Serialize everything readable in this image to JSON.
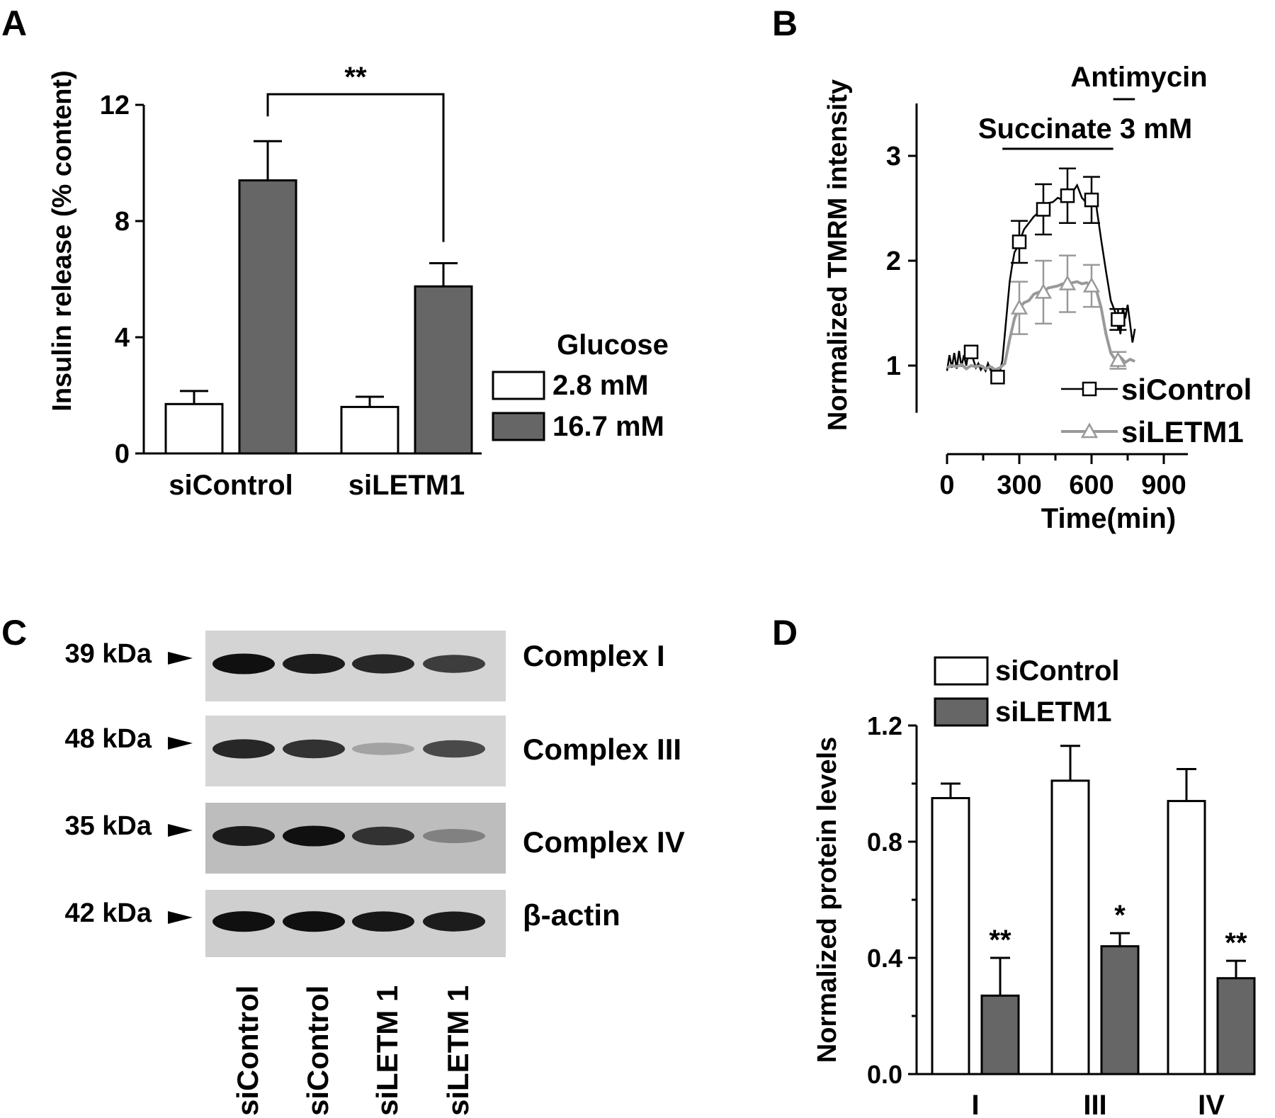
{
  "panels": {
    "A": {
      "letter": "A",
      "chart_data": {
        "type": "bar",
        "ylabel": "Insulin release (% content)",
        "ylim": [
          0,
          12
        ],
        "yticks": [
          "0",
          "4",
          "8",
          "12"
        ],
        "categories": [
          "siControl",
          "siLETM1"
        ],
        "legend_title": "Glucose",
        "legend_placement": "right",
        "series": [
          {
            "name": "2.8 mM",
            "color": "#ffffff",
            "values": [
              1.7,
              1.6
            ],
            "errors": [
              0.45,
              0.35
            ]
          },
          {
            "name": "16.7 mM",
            "color": "#666666",
            "values": [
              9.4,
              5.75
            ],
            "errors": [
              1.35,
              0.8
            ]
          }
        ],
        "significance": "**"
      }
    },
    "B": {
      "letter": "B",
      "chart_data": {
        "type": "line",
        "xlabel": "Time(min)",
        "ylabel": "Normalized TMRM intensity",
        "xlim": [
          0,
          1000
        ],
        "ylim": [
          0.55,
          3.5
        ],
        "xticks": [
          "0",
          "300",
          "600",
          "900"
        ],
        "yticks": [
          "1",
          "2",
          "3"
        ],
        "annotations": {
          "succinate": "Succinate 3 mM",
          "antimycin": "Antimycin"
        },
        "treatment_windows": {
          "succinate": [
            230,
            690
          ],
          "antimycin": [
            690,
            780
          ]
        },
        "series": [
          {
            "name": "siControl",
            "color": "#000000",
            "marker": "square",
            "x": [
              100,
              210,
              300,
              400,
              500,
              600,
              710
            ],
            "y": [
              1.13,
              0.89,
              2.18,
              2.49,
              2.62,
              2.58,
              1.44
            ],
            "errors": [
              0,
              0,
              0.2,
              0.24,
              0.26,
              0.22,
              0.1
            ],
            "trace_x": [
              0,
              10,
              20,
              30,
              40,
              50,
              60,
              70,
              80,
              90,
              100,
              110,
              120,
              130,
              140,
              150,
              160,
              170,
              180,
              190,
              200,
              210,
              220,
              230,
              240,
              250,
              260,
              270,
              280,
              290,
              300,
              320,
              340,
              360,
              380,
              400,
              420,
              440,
              460,
              480,
              500,
              520,
              540,
              560,
              580,
              600,
              620,
              640,
              660,
              680,
              700,
              710,
              720,
              730,
              740,
              750,
              760,
              770,
              780
            ],
            "trace_y": [
              0.95,
              1.1,
              0.98,
              1.12,
              0.97,
              1.14,
              0.99,
              1.1,
              1.0,
              1.15,
              1.13,
              1.05,
              0.98,
              1.02,
              0.96,
              0.99,
              0.95,
              1.02,
              0.96,
              0.98,
              0.94,
              0.89,
              0.95,
              1.05,
              1.3,
              1.55,
              1.8,
              1.95,
              2.08,
              2.12,
              2.18,
              2.3,
              2.36,
              2.42,
              2.46,
              2.49,
              2.55,
              2.56,
              2.6,
              2.58,
              2.62,
              2.65,
              2.72,
              2.6,
              2.55,
              2.58,
              2.52,
              2.2,
              1.9,
              1.62,
              1.5,
              1.44,
              1.3,
              1.55,
              1.45,
              1.58,
              1.4,
              1.22,
              1.35
            ]
          },
          {
            "name": "siLETM1",
            "color": "#999999",
            "marker": "triangle",
            "x": [
              300,
              400,
              500,
              600,
              710
            ],
            "y": [
              1.55,
              1.7,
              1.78,
              1.76,
              1.05
            ],
            "errors": [
              0.25,
              0.3,
              0.27,
              0.2,
              0.08
            ],
            "trace_x": [
              0,
              20,
              40,
              60,
              80,
              100,
              120,
              140,
              160,
              180,
              200,
              220,
              240,
              260,
              280,
              300,
              320,
              340,
              360,
              380,
              400,
              420,
              440,
              460,
              480,
              500,
              520,
              540,
              560,
              580,
              600,
              620,
              640,
              660,
              680,
              700,
              720,
              740,
              760,
              780
            ],
            "trace_y": [
              0.98,
              1.0,
              0.99,
              1.01,
              0.97,
              1.0,
              0.99,
              1.0,
              0.97,
              0.99,
              0.96,
              0.98,
              1.02,
              1.25,
              1.45,
              1.55,
              1.6,
              1.62,
              1.68,
              1.7,
              1.7,
              1.74,
              1.75,
              1.76,
              1.78,
              1.78,
              1.79,
              1.8,
              1.78,
              1.79,
              1.76,
              1.72,
              1.55,
              1.3,
              1.12,
              1.05,
              1.08,
              1.03,
              1.06,
              1.04
            ]
          }
        ]
      }
    },
    "C": {
      "letter": "C",
      "blots": [
        {
          "kda": "39 kDa",
          "label": "Complex I",
          "intensity": [
            0.95,
            0.9,
            0.85,
            0.75
          ],
          "bg": "#d4d4d4"
        },
        {
          "kda": "48 kDa",
          "label": "Complex III",
          "intensity": [
            0.85,
            0.8,
            0.3,
            0.7
          ],
          "bg": "#d6d6d6"
        },
        {
          "kda": "35 kDa",
          "label": "Complex IV",
          "intensity": [
            0.9,
            0.95,
            0.8,
            0.45
          ],
          "bg": "#bdbdbd"
        },
        {
          "kda": "42 kDa",
          "label": "β-actin",
          "intensity": [
            0.95,
            0.95,
            0.92,
            0.9
          ],
          "bg": "#cfcfcf"
        }
      ],
      "lanes": [
        "siControl",
        "siControl",
        "siLETM 1",
        "siLETM 1"
      ]
    },
    "D": {
      "letter": "D",
      "chart_data": {
        "type": "bar",
        "ylabel": "Normalized protein levels",
        "ylim": [
          0,
          1.2
        ],
        "yticks": [
          "0.0",
          "0.4",
          "0.8",
          "1.2"
        ],
        "categories": [
          "I",
          "III",
          "IV"
        ],
        "legend_placement": "top-left",
        "series": [
          {
            "name": "siControl",
            "color": "#ffffff",
            "values": [
              0.95,
              1.01,
              0.94
            ],
            "errors": [
              0.05,
              0.12,
              0.11
            ]
          },
          {
            "name": "siLETM1",
            "color": "#666666",
            "values": [
              0.27,
              0.44,
              0.33
            ],
            "errors": [
              0.13,
              0.045,
              0.06
            ]
          }
        ],
        "significance": [
          "**",
          "*",
          "**"
        ]
      }
    }
  }
}
